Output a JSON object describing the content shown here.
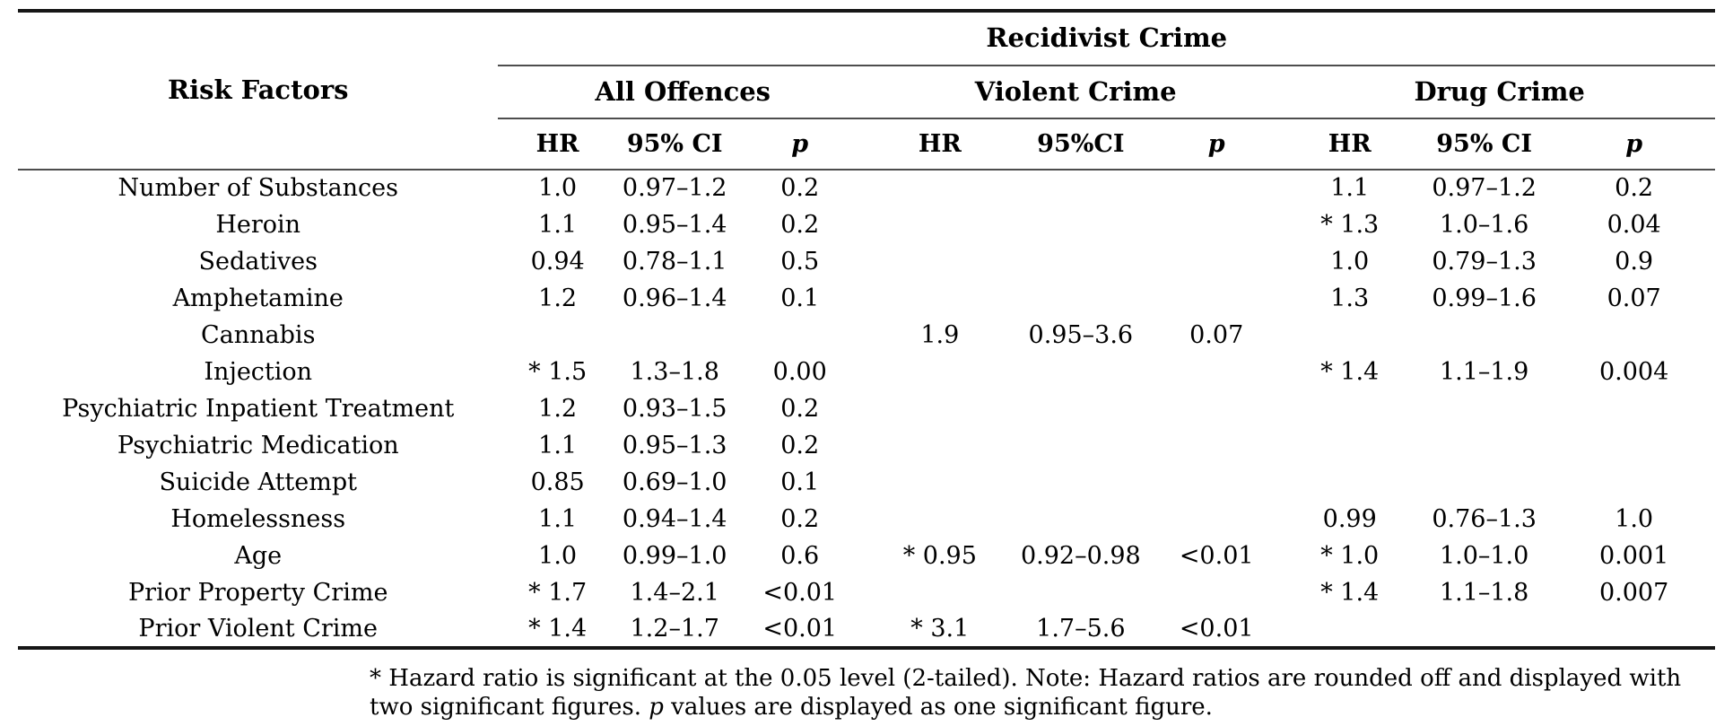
{
  "table": {
    "risk_factors_header": "Risk Factors",
    "spanner": "Recidivist Crime",
    "groups": [
      {
        "label": "All Offences",
        "columns": [
          "HR",
          "95% CI",
          "p"
        ]
      },
      {
        "label": "Violent Crime",
        "columns": [
          "HR",
          "95%CI",
          "p"
        ]
      },
      {
        "label": "Drug Crime",
        "columns": [
          "HR",
          "95% CI",
          "p"
        ]
      }
    ],
    "rows": [
      {
        "label": "Number of Substances",
        "cells": [
          "1.0",
          "0.97–1.2",
          "0.2",
          "",
          "",
          "",
          "1.1",
          "0.97–1.2",
          "0.2"
        ]
      },
      {
        "label": "Heroin",
        "cells": [
          "1.1",
          "0.95–1.4",
          "0.2",
          "",
          "",
          "",
          "* 1.3",
          "1.0–1.6",
          "0.04"
        ]
      },
      {
        "label": "Sedatives",
        "cells": [
          "0.94",
          "0.78–1.1",
          "0.5",
          "",
          "",
          "",
          "1.0",
          "0.79–1.3",
          "0.9"
        ]
      },
      {
        "label": "Amphetamine",
        "cells": [
          "1.2",
          "0.96–1.4",
          "0.1",
          "",
          "",
          "",
          "1.3",
          "0.99–1.6",
          "0.07"
        ]
      },
      {
        "label": "Cannabis",
        "cells": [
          "",
          "",
          "",
          "1.9",
          "0.95–3.6",
          "0.07",
          "",
          "",
          ""
        ]
      },
      {
        "label": "Injection",
        "cells": [
          "* 1.5",
          "1.3–1.8",
          "0.00",
          "",
          "",
          "",
          "* 1.4",
          "1.1–1.9",
          "0.004"
        ]
      },
      {
        "label": "Psychiatric Inpatient Treatment",
        "cells": [
          "1.2",
          "0.93–1.5",
          "0.2",
          "",
          "",
          "",
          "",
          "",
          ""
        ]
      },
      {
        "label": "Psychiatric Medication",
        "cells": [
          "1.1",
          "0.95–1.3",
          "0.2",
          "",
          "",
          "",
          "",
          "",
          ""
        ]
      },
      {
        "label": "Suicide Attempt",
        "cells": [
          "0.85",
          "0.69–1.0",
          "0.1",
          "",
          "",
          "",
          "",
          "",
          ""
        ]
      },
      {
        "label": "Homelessness",
        "cells": [
          "1.1",
          "0.94–1.4",
          "0.2",
          "",
          "",
          "",
          "0.99",
          "0.76–1.3",
          "1.0"
        ]
      },
      {
        "label": "Age",
        "cells": [
          "1.0",
          "0.99–1.0",
          "0.6",
          "* 0.95",
          "0.92–0.98",
          "<0.01",
          "* 1.0",
          "1.0–1.0",
          "0.001"
        ]
      },
      {
        "label": "Prior Property Crime",
        "cells": [
          "* 1.7",
          "1.4–2.1",
          "<0.01",
          "",
          "",
          "",
          "* 1.4",
          "1.1–1.8",
          "0.007"
        ]
      },
      {
        "label": "Prior Violent Crime",
        "cells": [
          "* 1.4",
          "1.2–1.7",
          "<0.01",
          "* 3.1",
          "1.7–5.6",
          "<0.01",
          "",
          "",
          ""
        ]
      }
    ]
  },
  "footnote": {
    "line1": "* Hazard ratio is significant at the 0.05 level (2-tailed). Note: Hazard ratios are rounded off and displayed with",
    "line2_parts": [
      {
        "text": "two significant figures. ",
        "italic": false
      },
      {
        "text": "p",
        "italic": true
      },
      {
        "text": " values are displayed as one significant figure.",
        "italic": false
      }
    ]
  },
  "colors": {
    "background": "#ffffff",
    "text": "#000000",
    "rule_thick": "#161616",
    "rule_thin": "#4d4d4d"
  }
}
